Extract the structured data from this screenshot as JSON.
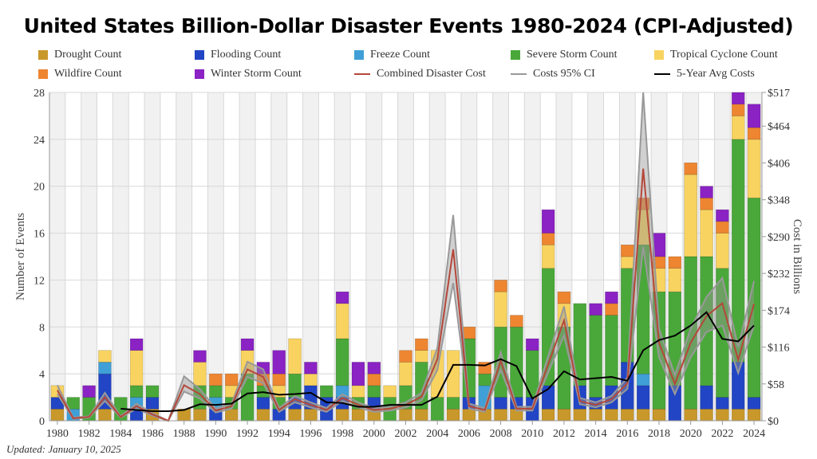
{
  "chart_data": {
    "type": "bar",
    "title": "United States Billion-Dollar Disaster Events 1980-2024 (CPI-Adjusted)",
    "ylabel": "Number of Events",
    "y2label": "Cost in Billions",
    "ylim": [
      0,
      28
    ],
    "y2lim": [
      0,
      517
    ],
    "yticks": [
      0,
      4,
      8,
      12,
      16,
      20,
      24,
      28
    ],
    "y2ticks": [
      "$0",
      "$58",
      "$116",
      "$174",
      "$232",
      "$290",
      "$348",
      "$406",
      "$464",
      "$517"
    ],
    "xticks": [
      "1980",
      "1982",
      "1984",
      "1986",
      "1988",
      "1990",
      "1992",
      "1994",
      "1996",
      "1998",
      "2000",
      "2002",
      "2004",
      "2006",
      "2008",
      "2010",
      "2012",
      "2014",
      "2016",
      "2018",
      "2020",
      "2022",
      "2024"
    ],
    "grid": true,
    "stacked": true,
    "legend_position": "top",
    "categories": [
      1980,
      1981,
      1982,
      1983,
      1984,
      1985,
      1986,
      1987,
      1988,
      1989,
      1990,
      1991,
      1992,
      1993,
      1994,
      1995,
      1996,
      1997,
      1998,
      1999,
      2000,
      2001,
      2002,
      2003,
      2004,
      2005,
      2006,
      2007,
      2008,
      2009,
      2010,
      2011,
      2012,
      2013,
      2014,
      2015,
      2016,
      2017,
      2018,
      2019,
      2020,
      2021,
      2022,
      2023,
      2024
    ],
    "series": [
      {
        "name": "Drought Count",
        "color": "#c9982a",
        "values": [
          1,
          0,
          0,
          1,
          0,
          0,
          1,
          0,
          1,
          1,
          0,
          1,
          0,
          1,
          0,
          1,
          1,
          0,
          1,
          1,
          1,
          0,
          1,
          1,
          0,
          1,
          1,
          1,
          1,
          1,
          0,
          1,
          1,
          1,
          1,
          1,
          1,
          1,
          1,
          0,
          1,
          1,
          1,
          1,
          1
        ]
      },
      {
        "name": "Flooding Count",
        "color": "#2145c4",
        "values": [
          1,
          0,
          0,
          3,
          0,
          1,
          1,
          0,
          0,
          0,
          1,
          0,
          0,
          1,
          1,
          1,
          2,
          2,
          1,
          0,
          1,
          0,
          0,
          0,
          0,
          0,
          1,
          0,
          1,
          1,
          2,
          2,
          0,
          2,
          1,
          2,
          4,
          2,
          0,
          3,
          0,
          2,
          1,
          4,
          1
        ]
      },
      {
        "name": "Freeze Count",
        "color": "#3f9fd6",
        "values": [
          0,
          1,
          0,
          1,
          0,
          1,
          0,
          0,
          0,
          0,
          1,
          0,
          0,
          0,
          0,
          0,
          0,
          0,
          1,
          0,
          0,
          0,
          0,
          0,
          0,
          0,
          0,
          2,
          0,
          0,
          0,
          0,
          0,
          0,
          0,
          0,
          0,
          1,
          0,
          0,
          0,
          0,
          0,
          0,
          0
        ]
      },
      {
        "name": "Severe Storm Count",
        "color": "#4aa83a",
        "values": [
          0,
          1,
          2,
          0,
          2,
          1,
          1,
          0,
          0,
          2,
          1,
          1,
          4,
          1,
          1,
          2,
          0,
          1,
          4,
          1,
          1,
          2,
          2,
          4,
          2,
          1,
          5,
          1,
          6,
          6,
          4,
          10,
          7,
          7,
          7,
          6,
          8,
          11,
          10,
          8,
          13,
          11,
          11,
          19,
          17
        ]
      },
      {
        "name": "Tropical Cyclone Count",
        "color": "#f9d360",
        "values": [
          1,
          0,
          0,
          1,
          0,
          3,
          0,
          0,
          0,
          2,
          0,
          1,
          2,
          0,
          1,
          3,
          1,
          0,
          3,
          1,
          0,
          1,
          2,
          1,
          4,
          4,
          0,
          0,
          3,
          0,
          0,
          2,
          2,
          0,
          0,
          0,
          1,
          3,
          2,
          2,
          7,
          4,
          3,
          2,
          5
        ]
      },
      {
        "name": "Wildfire Count",
        "color": "#ee8530",
        "values": [
          0,
          0,
          0,
          0,
          0,
          0,
          0,
          0,
          0,
          0,
          1,
          1,
          0,
          1,
          1,
          0,
          0,
          0,
          0,
          0,
          1,
          0,
          1,
          1,
          0,
          0,
          1,
          1,
          1,
          1,
          0,
          1,
          1,
          0,
          0,
          1,
          1,
          1,
          1,
          1,
          1,
          1,
          1,
          1,
          1
        ]
      },
      {
        "name": "Winter Storm Count",
        "color": "#8a22c4",
        "values": [
          0,
          0,
          1,
          0,
          0,
          1,
          0,
          0,
          0,
          1,
          0,
          0,
          1,
          1,
          2,
          0,
          1,
          0,
          1,
          2,
          1,
          0,
          0,
          0,
          0,
          0,
          0,
          0,
          0,
          0,
          1,
          2,
          0,
          0,
          1,
          1,
          0,
          0,
          2,
          0,
          0,
          1,
          1,
          1,
          2
        ]
      }
    ],
    "lines": {
      "combined_cost": {
        "name": "Combined Disaster Cost",
        "color": "#b5473a",
        "values": [
          48,
          4,
          6,
          37,
          6,
          23,
          10,
          0,
          56,
          42,
          16,
          23,
          81,
          69,
          17,
          34,
          25,
          17,
          36,
          25,
          17,
          19,
          25,
          38,
          97,
          270,
          23,
          17,
          94,
          19,
          19,
          89,
          158,
          31,
          25,
          34,
          59,
          397,
          123,
          58,
          123,
          165,
          185,
          96,
          184
        ]
      },
      "ci": {
        "name": "Costs 95% CI",
        "color": "#999999",
        "low": [
          42,
          3,
          5,
          31,
          5,
          19,
          8,
          0,
          46,
          35,
          13,
          19,
          69,
          59,
          14,
          29,
          21,
          14,
          31,
          21,
          14,
          16,
          21,
          32,
          80,
          217,
          19,
          14,
          80,
          16,
          16,
          76,
          134,
          26,
          21,
          29,
          50,
          274,
          100,
          42,
          100,
          140,
          150,
          75,
          150
        ],
        "high": [
          56,
          5,
          7,
          44,
          7,
          27,
          12,
          0,
          70,
          50,
          19,
          27,
          93,
          81,
          20,
          39,
          29,
          20,
          42,
          29,
          20,
          22,
          29,
          44,
          115,
          324,
          27,
          20,
          108,
          22,
          22,
          102,
          180,
          36,
          29,
          39,
          68,
          517,
          145,
          72,
          145,
          195,
          225,
          116,
          220
        ]
      },
      "avg5": {
        "name": "5-Year Avg Costs",
        "color": "#000000",
        "values": [
          null,
          null,
          null,
          null,
          19,
          17,
          15,
          15,
          17,
          26,
          25,
          27,
          43,
          45,
          41,
          42,
          44,
          29,
          28,
          22,
          22,
          25,
          25,
          25,
          38,
          88,
          88,
          87,
          97,
          86,
          35,
          50,
          78,
          65,
          67,
          69,
          63,
          111,
          127,
          134,
          150,
          171,
          129,
          125,
          150
        ]
      }
    }
  },
  "footer": "Updated: January 10, 2025"
}
